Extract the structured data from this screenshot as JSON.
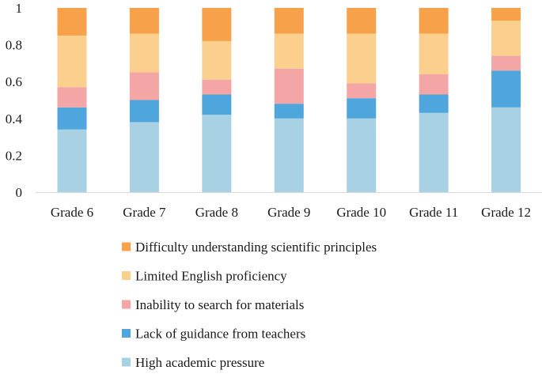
{
  "chart_data": {
    "type": "bar",
    "stacked": true,
    "categories": [
      "Grade 6",
      "Grade 7",
      "Grade 8",
      "Grade 9",
      "Grade 10",
      "Grade 11",
      "Grade 12"
    ],
    "ylim": [
      0,
      1
    ],
    "yticks": [
      0,
      0.2,
      0.4,
      0.6,
      0.8,
      1
    ],
    "ytick_labels": [
      "0",
      "0.2",
      "0.4",
      "0.6",
      "0.8",
      "1"
    ],
    "grid": false,
    "legend_position": "bottom",
    "series": [
      {
        "name": "High academic pressure",
        "color": "#a9d1e4",
        "values": [
          0.34,
          0.38,
          0.42,
          0.4,
          0.4,
          0.43,
          0.46
        ]
      },
      {
        "name": "Lack of guidance from teachers",
        "color": "#4ea6dc",
        "values": [
          0.12,
          0.12,
          0.11,
          0.08,
          0.11,
          0.1,
          0.2
        ]
      },
      {
        "name": "Inability to search for materials",
        "color": "#f4a6a6",
        "values": [
          0.11,
          0.15,
          0.08,
          0.19,
          0.08,
          0.11,
          0.08
        ]
      },
      {
        "name": "Limited English proficiency",
        "color": "#fbcf8e",
        "values": [
          0.28,
          0.21,
          0.21,
          0.19,
          0.27,
          0.22,
          0.19
        ]
      },
      {
        "name": "Difficulty understanding scientific principles",
        "color": "#f7a24b",
        "values": [
          0.15,
          0.14,
          0.18,
          0.14,
          0.14,
          0.14,
          0.07
        ]
      }
    ]
  }
}
